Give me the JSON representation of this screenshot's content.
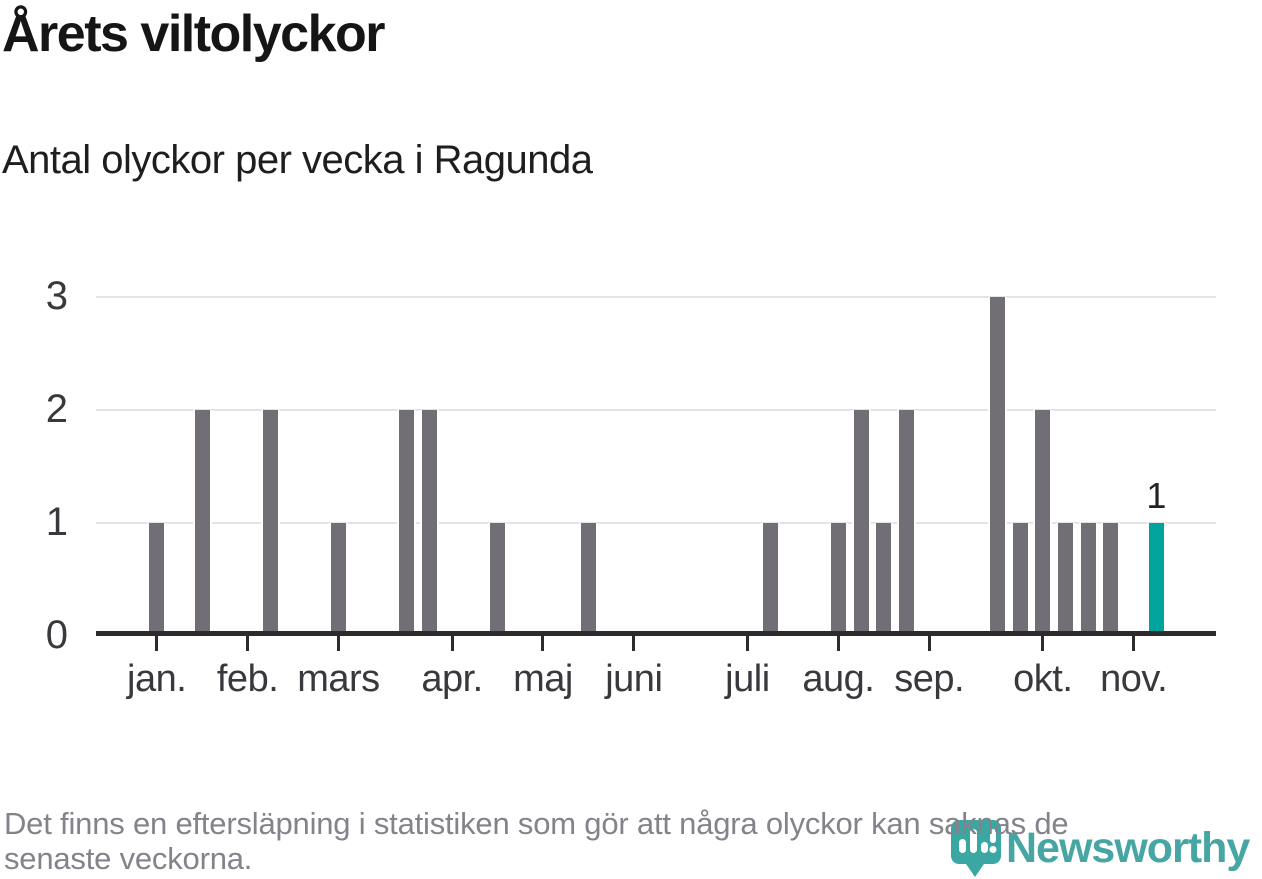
{
  "header": {
    "title": "Årets viltolyckor",
    "subtitle": "Antal olyckor per vecka i Ragunda"
  },
  "chart_data": {
    "type": "bar",
    "title": "Årets viltolyckor",
    "subtitle": "Antal olyckor per vecka i Ragunda",
    "x_unit": "week of year",
    "categories_weeks": [
      1,
      2,
      3,
      4,
      5,
      6,
      7,
      8,
      9,
      10,
      11,
      12,
      13,
      14,
      15,
      16,
      17,
      18,
      19,
      20,
      21,
      22,
      23,
      24,
      25,
      26,
      27,
      28,
      29,
      30,
      31,
      32,
      33,
      34,
      35,
      36,
      37,
      38,
      39,
      40,
      41,
      42,
      43,
      44,
      45
    ],
    "values": [
      1,
      0,
      2,
      0,
      0,
      2,
      0,
      0,
      1,
      0,
      0,
      2,
      2,
      0,
      0,
      1,
      0,
      0,
      0,
      1,
      0,
      0,
      0,
      0,
      0,
      0,
      0,
      1,
      0,
      0,
      1,
      2,
      1,
      2,
      0,
      0,
      0,
      3,
      1,
      2,
      1,
      1,
      1,
      0,
      1
    ],
    "highlight": {
      "week": 45,
      "value": 1,
      "label": "1"
    },
    "months": [
      {
        "label": "jan.",
        "week": 1
      },
      {
        "label": "feb.",
        "week": 5
      },
      {
        "label": "mars",
        "week": 9
      },
      {
        "label": "apr.",
        "week": 14
      },
      {
        "label": "maj",
        "week": 18
      },
      {
        "label": "juni",
        "week": 22
      },
      {
        "label": "juli",
        "week": 27
      },
      {
        "label": "aug.",
        "week": 31
      },
      {
        "label": "sep.",
        "week": 35
      },
      {
        "label": "okt.",
        "week": 40
      },
      {
        "label": "nov.",
        "week": 44
      }
    ],
    "y_ticks": [
      0,
      1,
      2,
      3
    ],
    "ylim": [
      0,
      3
    ],
    "xlabel": "",
    "ylabel": "",
    "grid": "horizontal",
    "legend": "none"
  },
  "note": {
    "line1": "Det finns en eftersläpning i statistiken som gör att några olyckor kan saknas de",
    "line2": "senaste veckorna."
  },
  "logo": {
    "text": "Newsworthy",
    "icon": "newsworthy-speech-bubble-chart-icon"
  },
  "colors": {
    "bar": "#716f75",
    "highlight": "#00a49c",
    "grid": "#e3e2e5",
    "axis": "#2d2b2e",
    "tick_label": "#39383d",
    "title": "#151515",
    "note": "#84838b",
    "logo": "#47a6a3",
    "background": "#ffffff"
  }
}
